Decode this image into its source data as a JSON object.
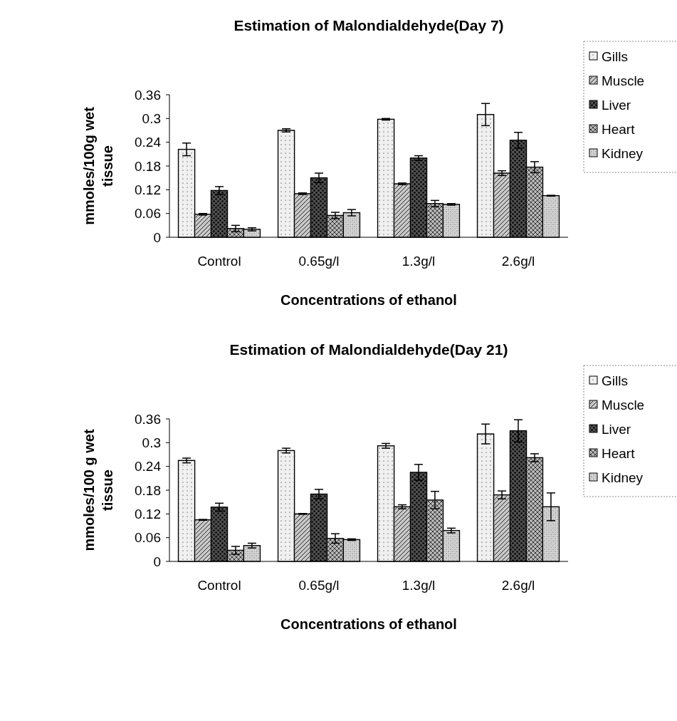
{
  "chart_data": [
    {
      "type": "bar",
      "title": "Estimation of Malondialdehyde(Day 7)",
      "xlabel": "Concentrations of ethanol",
      "ylabel": "mmoles/100g wet tissue",
      "categories": [
        "Control",
        "0.65g/l",
        "1.3g/l",
        "2.6g/l"
      ],
      "ylim": [
        0,
        0.36
      ],
      "yticks": [
        0,
        0.06,
        0.12,
        0.18,
        0.24,
        0.3,
        0.36
      ],
      "grid": false,
      "legend": "right",
      "series": [
        {
          "name": "Gills",
          "color": "#f0f0f0",
          "values": [
            0.222,
            0.27,
            0.298,
            0.31
          ],
          "errors": [
            0.016,
            0.004,
            0.002,
            0.028
          ]
        },
        {
          "name": "Muscle",
          "color": "#c8c8c8",
          "values": [
            0.058,
            0.11,
            0.135,
            0.162
          ],
          "errors": [
            0.002,
            0.002,
            0.002,
            0.006
          ]
        },
        {
          "name": "Liver",
          "color": "#505050",
          "values": [
            0.118,
            0.15,
            0.2,
            0.245
          ],
          "errors": [
            0.01,
            0.012,
            0.006,
            0.02
          ]
        },
        {
          "name": "Heart",
          "color": "#b8b8b8",
          "values": [
            0.022,
            0.055,
            0.085,
            0.177
          ],
          "errors": [
            0.008,
            0.008,
            0.008,
            0.014
          ]
        },
        {
          "name": "Kidney",
          "color": "#d8d8d8",
          "values": [
            0.02,
            0.062,
            0.083,
            0.105
          ],
          "errors": [
            0.004,
            0.008,
            0.002,
            0.001
          ]
        }
      ]
    },
    {
      "type": "bar",
      "title": "Estimation of Malondialdehyde(Day 21)",
      "xlabel": "Concentrations of ethanol",
      "ylabel": "mmoles/100 g wet tissue",
      "categories": [
        "Control",
        "0.65g/l",
        "1.3g/l",
        "2.6g/l"
      ],
      "ylim": [
        0,
        0.36
      ],
      "yticks": [
        0,
        0.06,
        0.12,
        0.18,
        0.24,
        0.3,
        0.36
      ],
      "grid": false,
      "legend": "right",
      "series": [
        {
          "name": "Gills",
          "color": "#f0f0f0",
          "values": [
            0.255,
            0.28,
            0.292,
            0.322
          ],
          "errors": [
            0.006,
            0.006,
            0.006,
            0.025
          ]
        },
        {
          "name": "Muscle",
          "color": "#c8c8c8",
          "values": [
            0.105,
            0.12,
            0.138,
            0.168
          ],
          "errors": [
            0.001,
            0.001,
            0.005,
            0.01
          ]
        },
        {
          "name": "Liver",
          "color": "#505050",
          "values": [
            0.137,
            0.17,
            0.225,
            0.33
          ],
          "errors": [
            0.01,
            0.012,
            0.02,
            0.028
          ]
        },
        {
          "name": "Heart",
          "color": "#b8b8b8",
          "values": [
            0.028,
            0.058,
            0.155,
            0.262
          ],
          "errors": [
            0.01,
            0.012,
            0.022,
            0.01
          ]
        },
        {
          "name": "Kidney",
          "color": "#d8d8d8",
          "values": [
            0.04,
            0.055,
            0.078,
            0.138
          ],
          "errors": [
            0.006,
            0.002,
            0.006,
            0.035
          ]
        }
      ]
    }
  ]
}
